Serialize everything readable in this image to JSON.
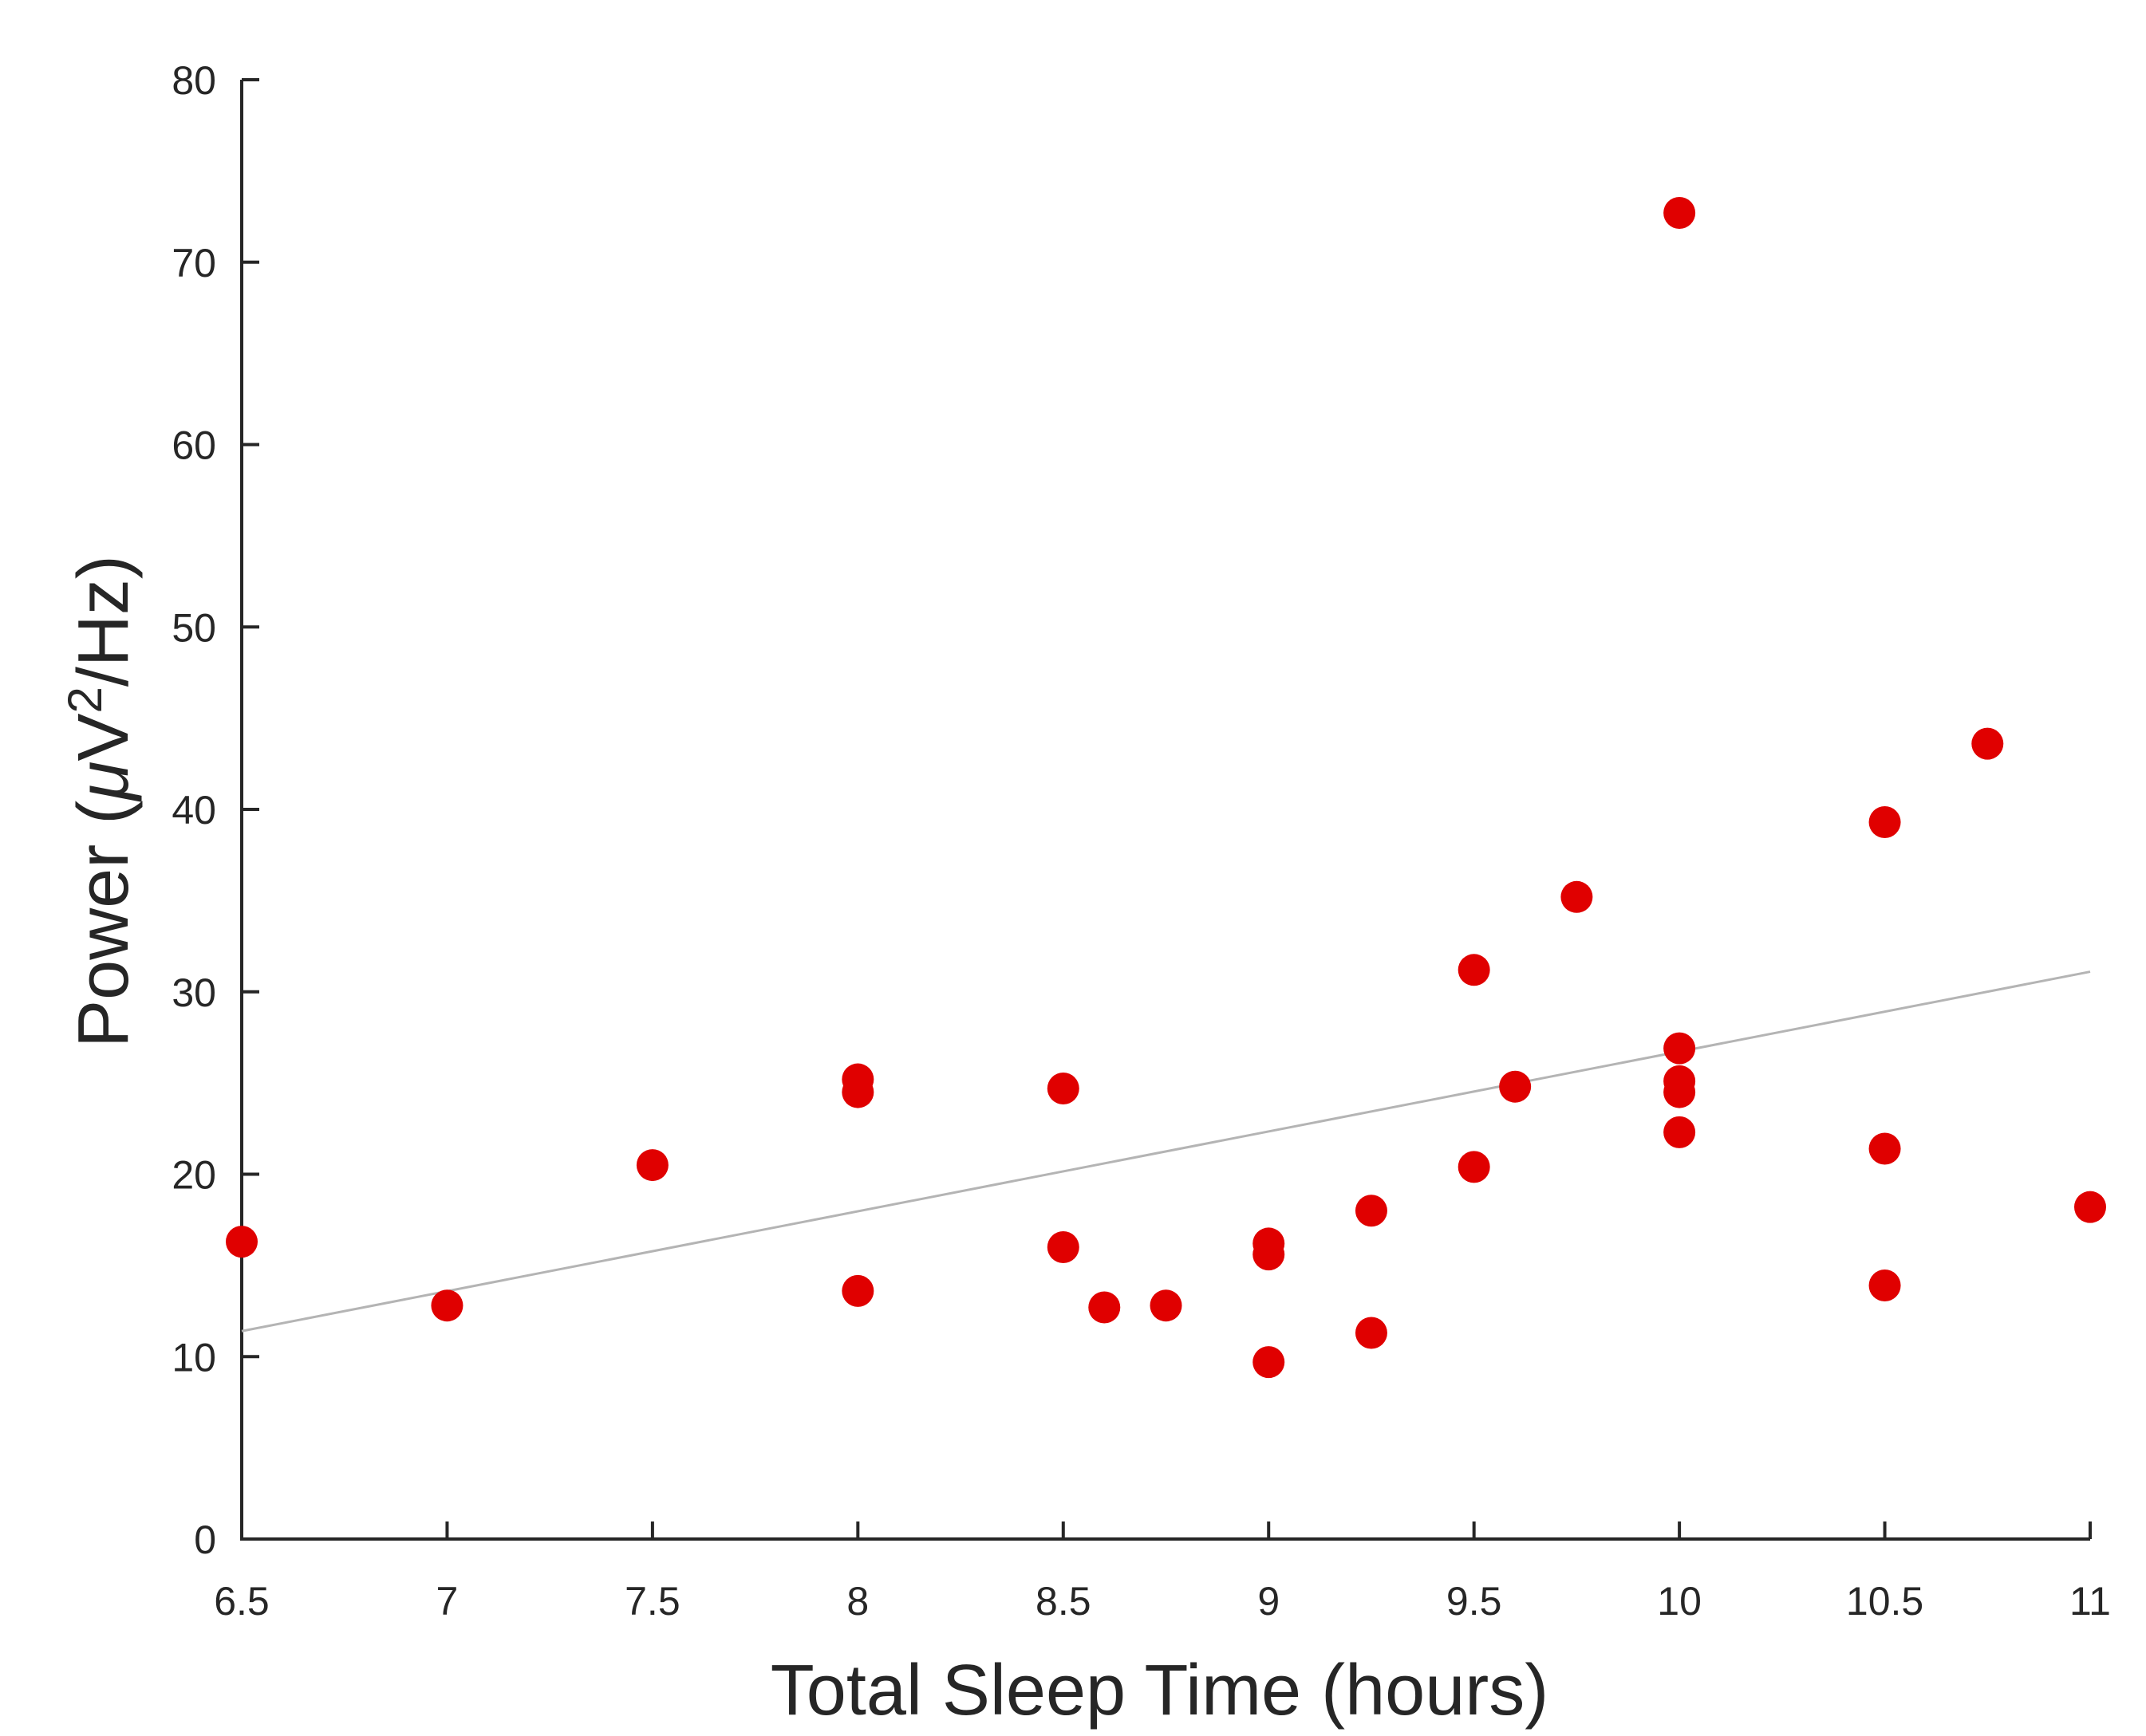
{
  "chart_data": {
    "type": "scatter",
    "title": "",
    "xlabel": "Total Sleep Time (hours)",
    "ylabel": {
      "prefix": "Power (",
      "mu": "μ",
      "unit": "V",
      "sup": "2",
      "suffix": "/Hz)"
    },
    "xlim": [
      6.5,
      11
    ],
    "ylim": [
      0,
      80
    ],
    "x_ticks": [
      6.5,
      7,
      7.5,
      8,
      8.5,
      9,
      9.5,
      10,
      10.5,
      11
    ],
    "x_tick_labels": [
      "6.5",
      "7",
      "7.5",
      "8",
      "8.5",
      "9",
      "9.5",
      "10",
      "10.5",
      "11"
    ],
    "y_ticks": [
      0,
      10,
      20,
      30,
      40,
      50,
      60,
      70,
      80
    ],
    "y_tick_labels": [
      "0",
      "10",
      "20",
      "30",
      "40",
      "50",
      "60",
      "70",
      "80"
    ],
    "grid": false,
    "series": [
      {
        "color": "#e00000",
        "points": [
          {
            "x": 6.5,
            "y": 16.3
          },
          {
            "x": 7.0,
            "y": 12.8
          },
          {
            "x": 7.5,
            "y": 20.5
          },
          {
            "x": 8.0,
            "y": 25.2
          },
          {
            "x": 8.0,
            "y": 24.5
          },
          {
            "x": 8.0,
            "y": 13.6
          },
          {
            "x": 8.5,
            "y": 24.7
          },
          {
            "x": 8.5,
            "y": 16.0
          },
          {
            "x": 8.6,
            "y": 12.7
          },
          {
            "x": 8.75,
            "y": 12.8
          },
          {
            "x": 9.0,
            "y": 16.2
          },
          {
            "x": 9.0,
            "y": 15.6
          },
          {
            "x": 9.0,
            "y": 9.7
          },
          {
            "x": 9.25,
            "y": 18.0
          },
          {
            "x": 9.25,
            "y": 11.3
          },
          {
            "x": 9.5,
            "y": 31.2
          },
          {
            "x": 9.5,
            "y": 20.4
          },
          {
            "x": 9.6,
            "y": 24.8
          },
          {
            "x": 9.75,
            "y": 35.2
          },
          {
            "x": 10.0,
            "y": 72.7
          },
          {
            "x": 10.0,
            "y": 26.9
          },
          {
            "x": 10.0,
            "y": 25.1
          },
          {
            "x": 10.0,
            "y": 24.5
          },
          {
            "x": 10.0,
            "y": 22.3
          },
          {
            "x": 10.5,
            "y": 39.3
          },
          {
            "x": 10.5,
            "y": 21.4
          },
          {
            "x": 10.5,
            "y": 13.9
          },
          {
            "x": 10.75,
            "y": 43.6
          },
          {
            "x": 11.0,
            "y": 18.2
          }
        ]
      }
    ],
    "trendline": {
      "color": "#b4b4b4",
      "x": [
        6.5,
        11
      ],
      "y": [
        11.4,
        31.1
      ]
    }
  }
}
